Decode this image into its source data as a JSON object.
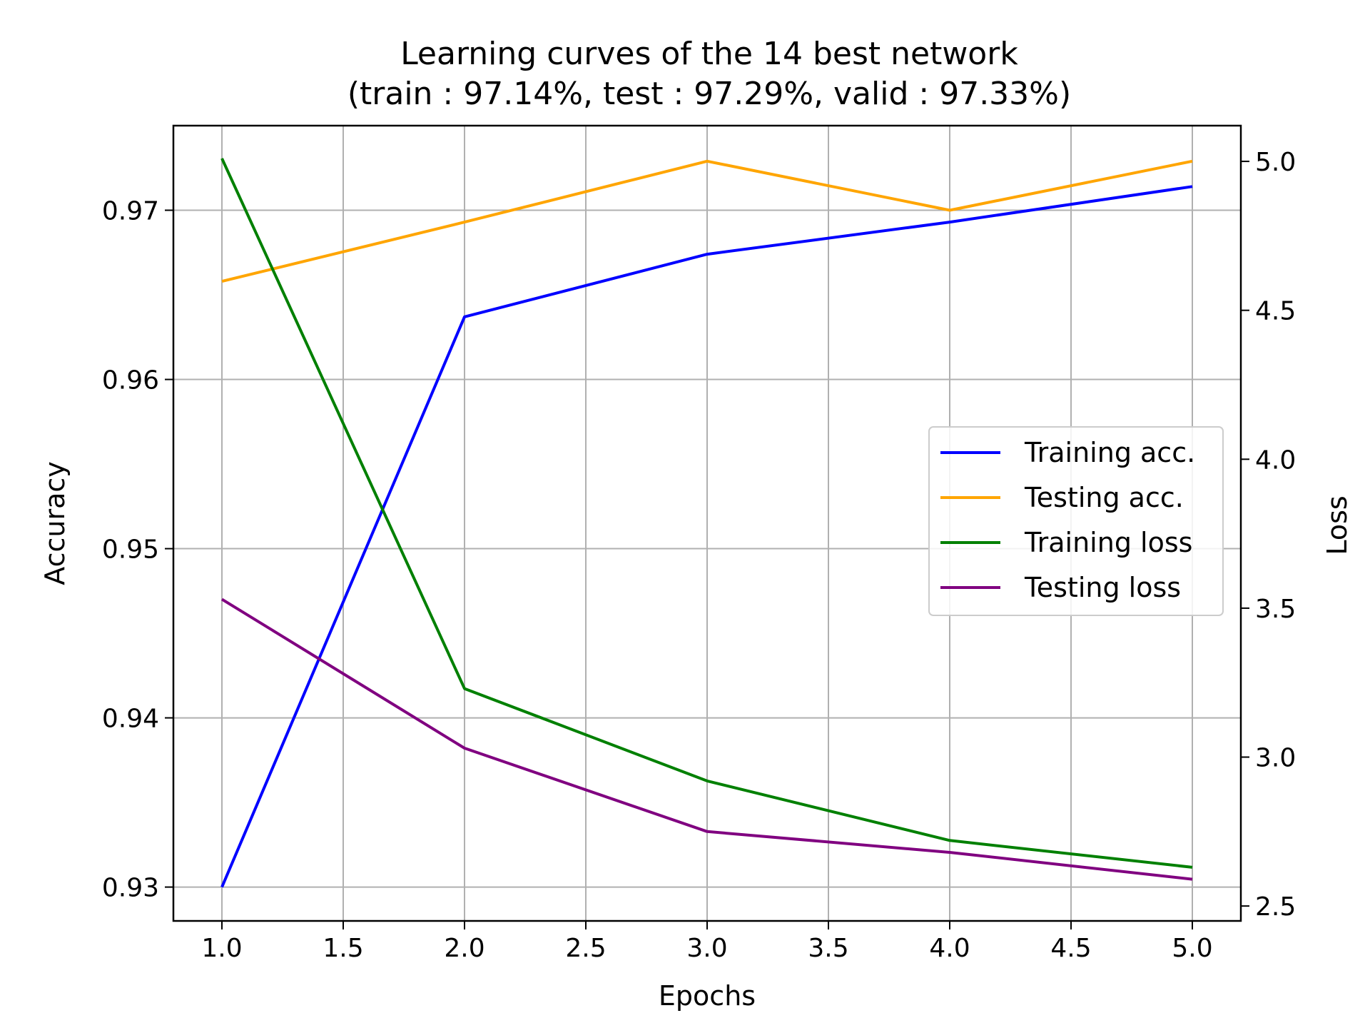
{
  "chart_data": {
    "type": "line",
    "title": "Learning curves of the 14 best network",
    "subtitle": "(train : 97.14%, test : 97.29%, valid : 97.33%)",
    "xlabel": "Epochs",
    "ylabel": "Accuracy",
    "y2label": "Loss",
    "x": [
      1,
      2,
      3,
      4,
      5
    ],
    "xlim": [
      0.8,
      5.2
    ],
    "ylim": [
      0.928,
      0.975
    ],
    "y2lim": [
      2.45,
      5.12
    ],
    "xticks": [
      "1.0",
      "1.5",
      "2.0",
      "2.5",
      "3.0",
      "3.5",
      "4.0",
      "4.5",
      "5.0"
    ],
    "yticks": [
      "0.93",
      "0.94",
      "0.95",
      "0.96",
      "0.97"
    ],
    "y2ticks": [
      "2.5",
      "3.0",
      "3.5",
      "4.0",
      "4.5",
      "5.0"
    ],
    "grid": true,
    "legend_position": "center-right",
    "series": [
      {
        "name": "Training acc.",
        "axis": "left",
        "color": "#0000ff",
        "values": [
          0.93,
          0.9637,
          0.9674,
          0.9693,
          0.9714
        ]
      },
      {
        "name": "Testing acc.",
        "axis": "left",
        "color": "#ffa500",
        "values": [
          0.9658,
          0.9693,
          0.9729,
          0.97,
          0.9729
        ]
      },
      {
        "name": "Training loss",
        "axis": "right",
        "color": "#008000",
        "values": [
          5.01,
          3.23,
          2.92,
          2.72,
          2.63
        ]
      },
      {
        "name": "Testing loss",
        "axis": "right",
        "color": "#800080",
        "values": [
          3.53,
          3.03,
          2.75,
          2.68,
          2.59
        ]
      }
    ]
  }
}
